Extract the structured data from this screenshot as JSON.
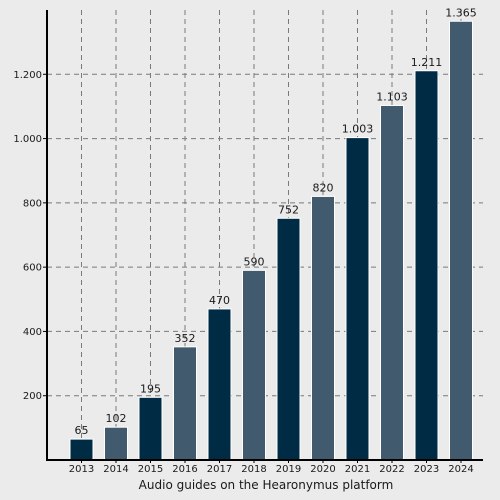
{
  "chart_data": {
    "type": "bar",
    "categories": [
      "2013",
      "2014",
      "2015",
      "2016",
      "2017",
      "2018",
      "2019",
      "2020",
      "2021",
      "2022",
      "2023",
      "2024"
    ],
    "values": [
      65,
      102,
      195,
      352,
      470,
      590,
      752,
      820,
      1003,
      1103,
      1211,
      1365
    ],
    "data_labels": [
      "65",
      "102",
      "195",
      "352",
      "470",
      "590",
      "752",
      "820",
      "1.003",
      "1.103",
      "1.211",
      "1.365"
    ],
    "xlabel": "Audio guides on the Hearonymus platform",
    "ylabel": "",
    "ylim": [
      0,
      1400
    ],
    "yticks": [
      200,
      400,
      600,
      800,
      1000,
      1200
    ],
    "ytick_labels": [
      "200",
      "400",
      "600",
      "800",
      "1.000",
      "1.200"
    ],
    "grid": true,
    "grid_style": "dashed",
    "bar_colors": [
      "#002b45",
      "#415a6e"
    ],
    "background_color": "#ebebeb",
    "grid_color": "#7a7a7a"
  }
}
